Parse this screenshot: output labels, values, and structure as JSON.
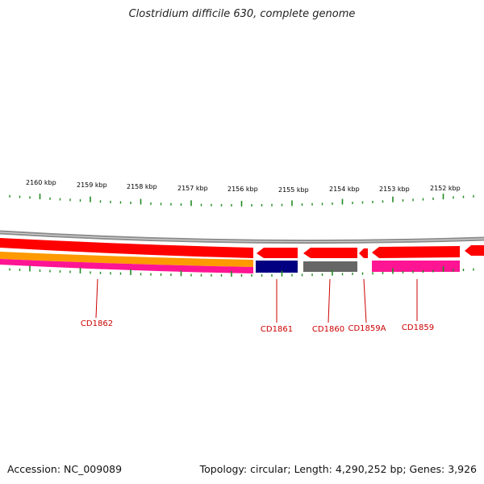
{
  "title": "Clostridium difficile 630, complete genome",
  "footer": {
    "accession": "Accession: NC_009089",
    "summary": "Topology: circular; Length: 4,290,252 bp; Genes: 3,926"
  },
  "scale_labels": [
    "2160 kbp",
    "2159 kbp",
    "2158 kbp",
    "2157 kbp",
    "2156 kbp",
    "2155 kbp",
    "2154 kbp",
    "2153 kbp",
    "2152 kbp"
  ],
  "gene_labels": [
    "CD1862",
    "CD1861",
    "CD1860",
    "CD1859A",
    "CD1859"
  ],
  "colors": {
    "backbone": "#8c8c8c",
    "cds": "#ff0000",
    "gene_orange": "#ff9900",
    "gene_pink": "#ff1493",
    "gene_navy": "#000080",
    "gene_gray": "#666666",
    "tick": "#228b22",
    "label": "#cc0000"
  }
}
